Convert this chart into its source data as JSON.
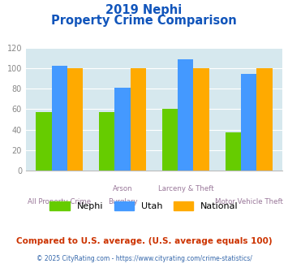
{
  "title_line1": "2019 Nephi",
  "title_line2": "Property Crime Comparison",
  "x_labels_top": [
    "",
    "Arson",
    "Larceny & Theft",
    ""
  ],
  "x_labels_bottom": [
    "All Property Crime",
    "Burglary",
    "",
    "Motor Vehicle Theft"
  ],
  "nephi_values": [
    57,
    57,
    60,
    37
  ],
  "utah_values": [
    103,
    81,
    109,
    95
  ],
  "national_values": [
    100,
    100,
    100,
    100
  ],
  "nephi_color": "#66cc00",
  "utah_color": "#4499ff",
  "national_color": "#ffaa00",
  "ylim": [
    0,
    120
  ],
  "yticks": [
    0,
    20,
    40,
    60,
    80,
    100,
    120
  ],
  "background_color": "#d6e8ee",
  "grid_color": "#ffffff",
  "legend_labels": [
    "Nephi",
    "Utah",
    "National"
  ],
  "footnote1": "Compared to U.S. average. (U.S. average equals 100)",
  "footnote2": "© 2025 CityRating.com - https://www.cityrating.com/crime-statistics/",
  "title_color": "#1155bb",
  "footnote1_color": "#cc3300",
  "footnote2_color": "#3366aa",
  "xlabel_color": "#997799",
  "ytick_color": "#888888"
}
